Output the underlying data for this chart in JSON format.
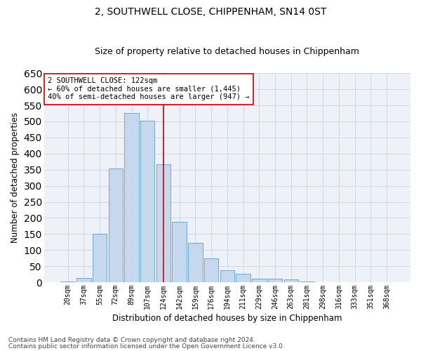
{
  "title": "2, SOUTHWELL CLOSE, CHIPPENHAM, SN14 0ST",
  "subtitle": "Size of property relative to detached houses in Chippenham",
  "xlabel": "Distribution of detached houses by size in Chippenham",
  "ylabel": "Number of detached properties",
  "categories": [
    "20sqm",
    "37sqm",
    "55sqm",
    "72sqm",
    "89sqm",
    "107sqm",
    "124sqm",
    "142sqm",
    "159sqm",
    "176sqm",
    "194sqm",
    "211sqm",
    "229sqm",
    "246sqm",
    "263sqm",
    "281sqm",
    "298sqm",
    "316sqm",
    "333sqm",
    "351sqm",
    "368sqm"
  ],
  "values": [
    3,
    13,
    150,
    353,
    527,
    502,
    367,
    188,
    122,
    75,
    38,
    27,
    11,
    11,
    9,
    3,
    1,
    0,
    0,
    0,
    0
  ],
  "bar_color": "#c5d8ed",
  "bar_edge_color": "#5a9fd4",
  "grid_color": "#d0d8e8",
  "background_color": "#eef2f8",
  "vline_x_index": 6,
  "vline_color": "#cc0000",
  "annotation_text": "2 SOUTHWELL CLOSE: 122sqm\n← 60% of detached houses are smaller (1,445)\n40% of semi-detached houses are larger (947) →",
  "annotation_box_color": "#ffffff",
  "annotation_box_edge": "#cc0000",
  "ylim": [
    0,
    650
  ],
  "yticks": [
    0,
    50,
    100,
    150,
    200,
    250,
    300,
    350,
    400,
    450,
    500,
    550,
    600,
    650
  ],
  "footnote1": "Contains HM Land Registry data © Crown copyright and database right 2024.",
  "footnote2": "Contains public sector information licensed under the Open Government Licence v3.0.",
  "title_fontsize": 10,
  "subtitle_fontsize": 9,
  "axis_label_fontsize": 8.5,
  "tick_fontsize": 7,
  "annotation_fontsize": 7.5,
  "footnote_fontsize": 6.5
}
